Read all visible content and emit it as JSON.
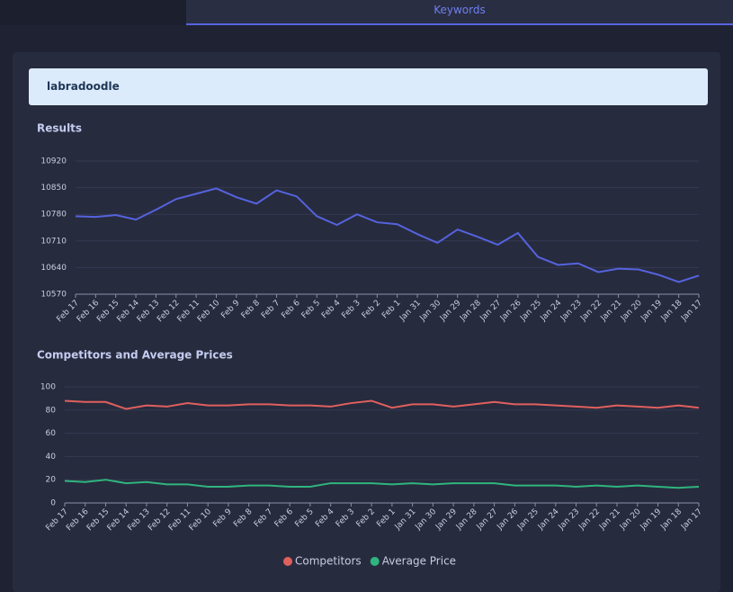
{
  "tab": "Keywords",
  "keyword": "labradoodle",
  "chart_data": [
    {
      "type": "line",
      "title": "Results",
      "x": [
        "Feb 17",
        "Feb 16",
        "Feb 15",
        "Feb 14",
        "Feb 13",
        "Feb 12",
        "Feb 11",
        "Feb 10",
        "Feb 9",
        "Feb 8",
        "Feb 7",
        "Feb 6",
        "Feb 5",
        "Feb 4",
        "Feb 3",
        "Feb 2",
        "Feb 1",
        "Jan 31",
        "Jan 30",
        "Jan 29",
        "Jan 28",
        "Jan 27",
        "Jan 26",
        "Jan 25",
        "Jan 24",
        "Jan 23",
        "Jan 22",
        "Jan 21",
        "Jan 20",
        "Jan 19",
        "Jan 18",
        "Jan 17"
      ],
      "values": [
        10775,
        10773,
        10778,
        10766,
        10792,
        10820,
        10834,
        10848,
        10825,
        10808,
        10843,
        10827,
        10775,
        10752,
        10780,
        10759,
        10754,
        10728,
        10705,
        10740,
        10721,
        10700,
        10731,
        10668,
        10647,
        10651,
        10628,
        10637,
        10635,
        10621,
        10602,
        10619
      ],
      "color": "#5563de",
      "ylim": [
        10570,
        10920
      ],
      "yticks": [
        10570,
        10640,
        10710,
        10780,
        10850,
        10920
      ],
      "grid": true
    },
    {
      "type": "line",
      "title": "Competitors and Average Prices",
      "x": [
        "Feb 17",
        "Feb 16",
        "Feb 15",
        "Feb 14",
        "Feb 13",
        "Feb 12",
        "Feb 11",
        "Feb 10",
        "Feb 9",
        "Feb 8",
        "Feb 7",
        "Feb 6",
        "Feb 5",
        "Feb 4",
        "Feb 3",
        "Feb 2",
        "Feb 1",
        "Jan 31",
        "Jan 30",
        "Jan 29",
        "Jan 28",
        "Jan 27",
        "Jan 26",
        "Jan 25",
        "Jan 24",
        "Jan 23",
        "Jan 22",
        "Jan 21",
        "Jan 20",
        "Jan 19",
        "Jan 18",
        "Jan 17"
      ],
      "series": [
        {
          "name": "Competitors",
          "color": "#e0605e",
          "values": [
            88,
            87,
            87,
            81,
            84,
            83,
            86,
            84,
            84,
            85,
            85,
            84,
            84,
            83,
            86,
            88,
            82,
            85,
            85,
            83,
            85,
            87,
            85,
            85,
            84,
            83,
            82,
            84,
            83,
            82,
            84,
            82
          ]
        },
        {
          "name": "Average Price",
          "color": "#2fb57e",
          "values": [
            19,
            18,
            20,
            17,
            18,
            16,
            16,
            14,
            14,
            15,
            15,
            14,
            14,
            17,
            17,
            17,
            16,
            17,
            16,
            17,
            17,
            17,
            15,
            15,
            15,
            14,
            15,
            14,
            15,
            14,
            13,
            14
          ]
        }
      ],
      "ylim": [
        0,
        100
      ],
      "yticks": [
        0,
        20,
        40,
        60,
        80,
        100
      ],
      "grid": true,
      "legend": "bottom"
    }
  ]
}
